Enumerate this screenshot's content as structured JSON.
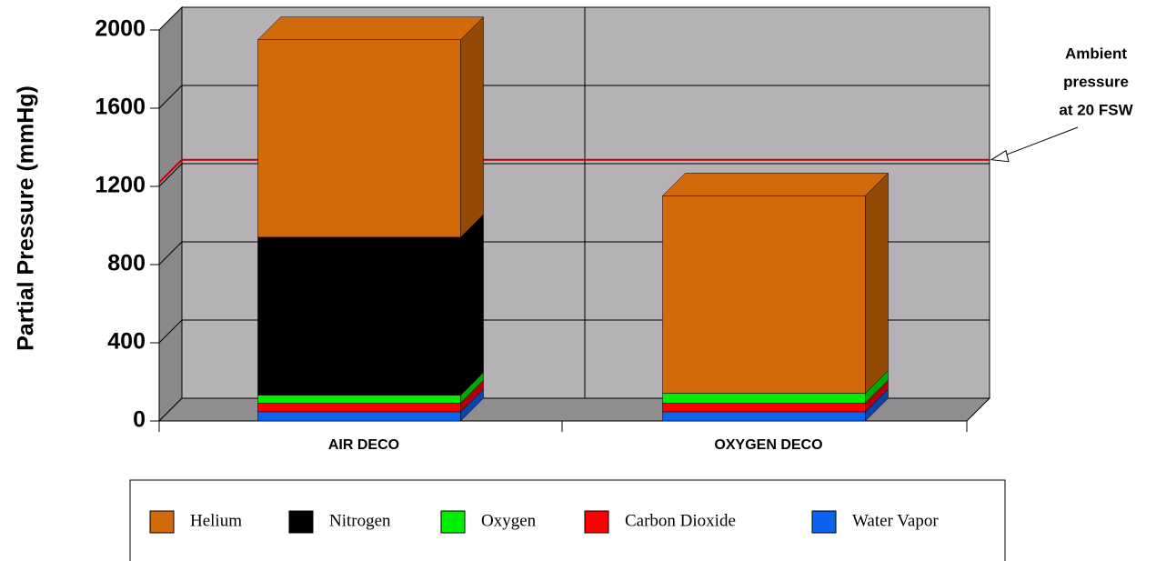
{
  "chart_data": {
    "type": "bar3d_stacked",
    "y_label": "Partial Pressure (mmHg)",
    "categories": [
      "AIR DECO",
      "OXYGEN DECO"
    ],
    "series": [
      {
        "name": "Helium",
        "color": "#d2690a",
        "values": [
          1010,
          1010
        ]
      },
      {
        "name": "Nitrogen",
        "color": "#000000",
        "values": [
          808,
          0
        ]
      },
      {
        "name": "Oxygen",
        "color": "#00ee00",
        "values": [
          40,
          50
        ]
      },
      {
        "name": "Carbon Dioxide",
        "color": "#ff0000",
        "values": [
          45,
          45
        ]
      },
      {
        "name": "Water Vapor",
        "color": "#0a64f0",
        "values": [
          47,
          47
        ]
      }
    ],
    "ylim": [
      0,
      2000
    ],
    "yticks": [
      0,
      400,
      800,
      1200,
      1600,
      2000
    ],
    "grid": true,
    "reference_line": {
      "value": 1220,
      "color": "#c00000",
      "label": [
        "Ambient",
        "pressure",
        "at 20 FSW"
      ]
    }
  }
}
